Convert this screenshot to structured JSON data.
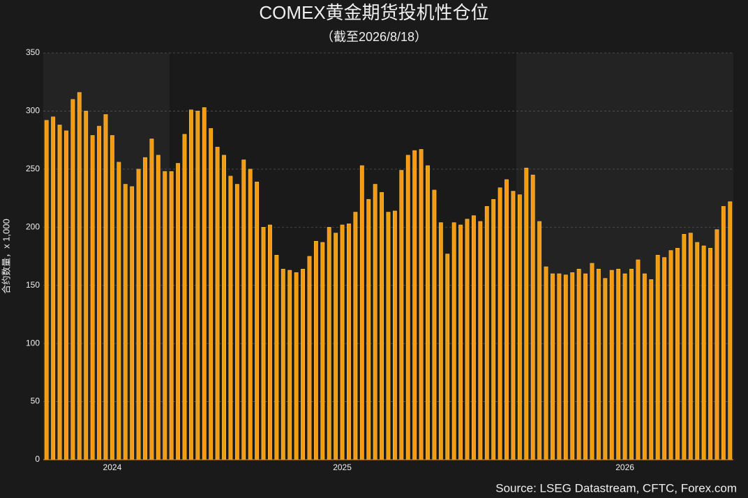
{
  "chart_data": {
    "type": "bar",
    "title": "COMEX黄金期货投机性仓位",
    "subtitle": "（截至2026/8/18）",
    "y_label": "合约数量，x 1,000",
    "source": "Source: LSEG Datastream, CFTC, Forex.com",
    "color": "#f39c12",
    "grid": true,
    "ylim": [
      0,
      350
    ],
    "yticks": [
      0,
      50,
      100,
      150,
      200,
      250,
      300,
      350
    ],
    "categories": [
      null,
      null,
      null,
      null,
      null,
      null,
      null,
      null,
      null,
      null,
      "2024",
      null,
      null,
      null,
      null,
      null,
      null,
      null,
      null,
      null,
      null,
      null,
      null,
      null,
      null,
      null,
      null,
      null,
      null,
      null,
      null,
      null,
      null,
      null,
      null,
      null,
      null,
      null,
      null,
      null,
      null,
      null,
      null,
      null,
      null,
      "2025",
      null,
      null,
      null,
      null,
      null,
      null,
      null,
      null,
      null,
      null,
      null,
      null,
      null,
      null,
      null,
      null,
      null,
      null,
      null,
      null,
      null,
      null,
      null,
      null,
      null,
      null,
      null,
      null,
      null,
      null,
      null,
      null,
      null,
      null,
      null,
      null,
      null,
      null,
      null,
      null,
      null,
      null,
      "2026",
      null,
      null,
      null,
      null,
      null,
      null,
      null,
      null,
      null,
      null,
      null,
      null,
      null,
      null,
      null,
      null
    ],
    "values": [
      292,
      295,
      288,
      283,
      310,
      316,
      300,
      279,
      287,
      297,
      279,
      256,
      237,
      235,
      250,
      260,
      276,
      262,
      248,
      248,
      255,
      280,
      301,
      300,
      303,
      285,
      269,
      262,
      244,
      237,
      258,
      250,
      239,
      200,
      202,
      176,
      164,
      163,
      161,
      164,
      175,
      188,
      187,
      200,
      195,
      202,
      203,
      213,
      253,
      224,
      237,
      230,
      213,
      214,
      249,
      262,
      266,
      267,
      253,
      232,
      204,
      177,
      204,
      202,
      207,
      210,
      205,
      218,
      224,
      234,
      241,
      231,
      228,
      251,
      245,
      205,
      166,
      160,
      160,
      159,
      161,
      164,
      160,
      169,
      164,
      156,
      163,
      164,
      160,
      164,
      172,
      160,
      155,
      176,
      174,
      180,
      182,
      194,
      195,
      187,
      184,
      182,
      198,
      218,
      222
    ]
  }
}
